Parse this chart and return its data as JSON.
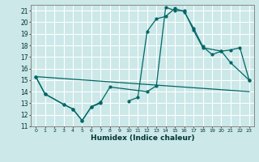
{
  "background_color": "#cce8e8",
  "grid_color": "#ffffff",
  "line_color": "#006666",
  "xlabel": "Humidex (Indice chaleur)",
  "xlim": [
    -0.5,
    23.5
  ],
  "ylim": [
    11,
    21.5
  ],
  "curves": [
    {
      "x": [
        0,
        1,
        3,
        4,
        5,
        6,
        7
      ],
      "y": [
        15.3,
        13.8,
        12.9,
        12.5,
        11.5,
        12.7,
        13.0
      ]
    },
    {
      "x": [
        0,
        1,
        3,
        4,
        5,
        6,
        7,
        8,
        12,
        13,
        14,
        15,
        16,
        17,
        18,
        20,
        21,
        23
      ],
      "y": [
        15.3,
        13.8,
        12.9,
        12.5,
        11.5,
        12.7,
        13.1,
        14.4,
        14.0,
        14.5,
        21.3,
        21.0,
        21.0,
        19.3,
        17.8,
        17.5,
        16.5,
        15.0
      ]
    },
    {
      "x": [
        0,
        23
      ],
      "y": [
        15.3,
        14.0
      ]
    },
    {
      "x": [
        10,
        11,
        12,
        13,
        14,
        15,
        16,
        17,
        18,
        19,
        20,
        21,
        22,
        23
      ],
      "y": [
        13.2,
        13.5,
        19.2,
        20.3,
        20.5,
        21.2,
        20.9,
        19.5,
        17.9,
        17.2,
        17.5,
        17.6,
        17.8,
        15.0
      ]
    }
  ]
}
